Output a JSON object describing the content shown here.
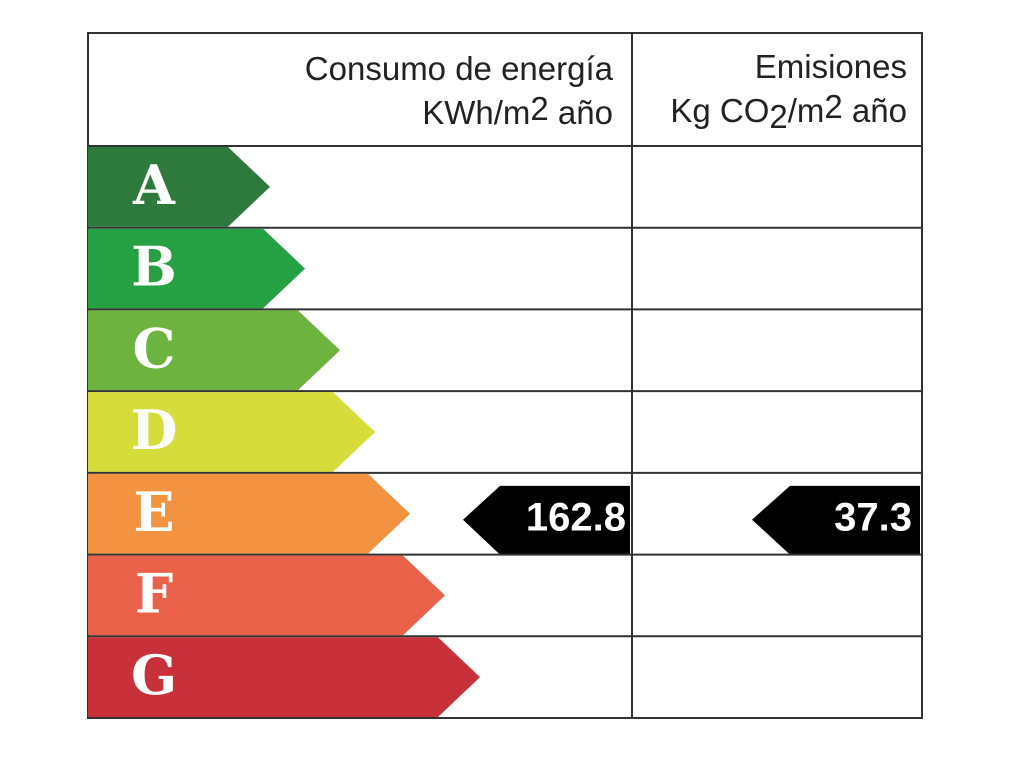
{
  "header": {
    "energy": {
      "title": "Consumo de energía",
      "unit": [
        "KWh/m",
        "2",
        " año"
      ]
    },
    "emissions": {
      "title": "Emisiones",
      "unit": [
        "Kg CO",
        "2",
        "/m",
        "2",
        " año"
      ]
    }
  },
  "rows": [
    {
      "letter": "A",
      "color": "#2e7a3c"
    },
    {
      "letter": "B",
      "color": "#25a043"
    },
    {
      "letter": "C",
      "color": "#6cb33f"
    },
    {
      "letter": "D",
      "color": "#d6dc3a"
    },
    {
      "letter": "E",
      "color": "#f39240",
      "energy": 162.8,
      "emissions": 37.3
    },
    {
      "letter": "F",
      "color": "#ea6149"
    },
    {
      "letter": "G",
      "color": "#c8303a"
    }
  ]
}
